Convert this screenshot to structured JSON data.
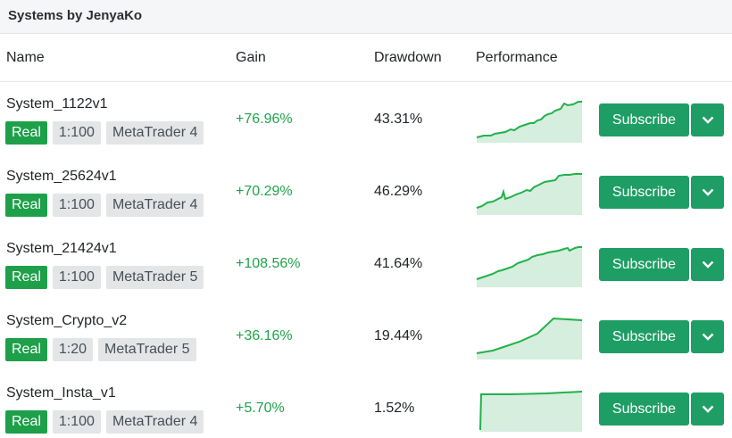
{
  "header": {
    "title": "Systems by JenyaKo"
  },
  "columns": {
    "name": "Name",
    "gain": "Gain",
    "drawdown": "Drawdown",
    "performance": "Performance"
  },
  "colors": {
    "positive": "#1fa34a",
    "brand": "#1e9e64",
    "real_badge": "#1ea04a",
    "sparkline_fill": "#d5eedd",
    "sparkline_line": "#22b14c"
  },
  "rows": [
    {
      "name": "System_1122v1",
      "type": "Real",
      "leverage": "1:100",
      "platform": "MetaTrader 4",
      "gain": "+76.96%",
      "drawdown": "43.31%",
      "subscribe": "Subscribe"
    },
    {
      "name": "System_25624v1",
      "type": "Real",
      "leverage": "1:100",
      "platform": "MetaTrader 4",
      "gain": "+70.29%",
      "drawdown": "46.29%",
      "subscribe": "Subscribe"
    },
    {
      "name": "System_21424v1",
      "type": "Real",
      "leverage": "1:100",
      "platform": "MetaTrader 5",
      "gain": "+108.56%",
      "drawdown": "41.64%",
      "subscribe": "Subscribe"
    },
    {
      "name": "System_Crypto_v2",
      "type": "Real",
      "leverage": "1:20",
      "platform": "MetaTrader 5",
      "gain": "+36.16%",
      "drawdown": "19.44%",
      "subscribe": "Subscribe"
    },
    {
      "name": "System_Insta_v1",
      "type": "Real",
      "leverage": "1:100",
      "platform": "MetaTrader 4",
      "gain": "+5.70%",
      "drawdown": "1.52%",
      "subscribe": "Subscribe"
    }
  ]
}
